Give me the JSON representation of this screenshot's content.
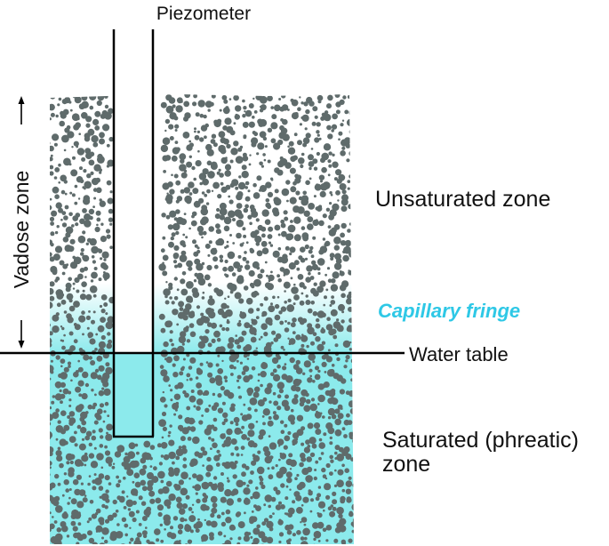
{
  "labels": {
    "piezometer": "Piezometer",
    "vadose_zone": "Vadose zone",
    "unsaturated_zone": "Unsaturated zone",
    "capillary_fringe": "Capillary fringe",
    "water_table": "Water table",
    "saturated_line1": "Saturated (phreatic)",
    "saturated_line2": "zone"
  },
  "colors": {
    "water": "#8ceaec",
    "grain": "#5f6b6b",
    "line": "#000000",
    "capillary_text": "#2ec8e6"
  },
  "icons": {
    "vadose_arrows": "double-headed-vertical-arrow"
  }
}
